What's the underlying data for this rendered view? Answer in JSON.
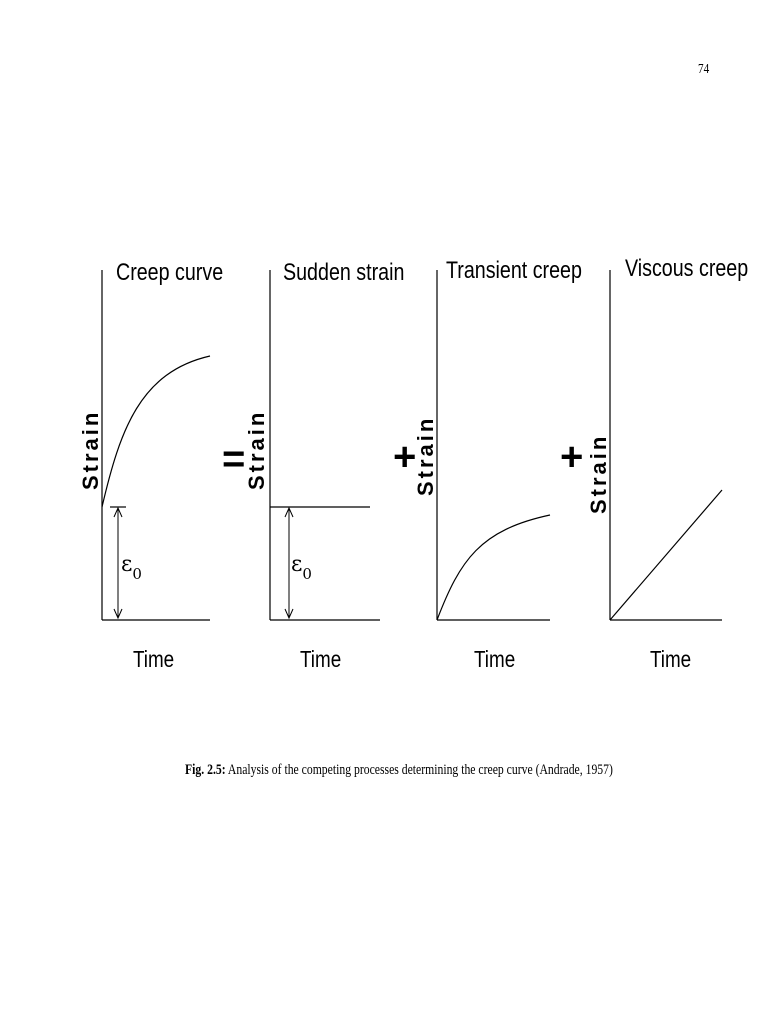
{
  "page_number": "74",
  "figure": {
    "panels": [
      {
        "title": "Creep curve",
        "ylabel": "Strain",
        "xlabel": "Time",
        "annotation": "ε",
        "annotation_sub": "0"
      },
      {
        "title": "Sudden strain",
        "ylabel": "Strain",
        "xlabel": "Time",
        "annotation": "ε",
        "annotation_sub": "0"
      },
      {
        "title": "Transient creep",
        "ylabel": "Strain",
        "xlabel": "Time"
      },
      {
        "title": "Viscous creep",
        "ylabel": "Strain",
        "xlabel": "Time"
      }
    ],
    "operators": [
      "=",
      "+",
      "+"
    ]
  },
  "caption": {
    "label": "Fig. 2.5:",
    "text": " Analysis of the competing processes determining the creep curve (Andrade, 1957)"
  }
}
